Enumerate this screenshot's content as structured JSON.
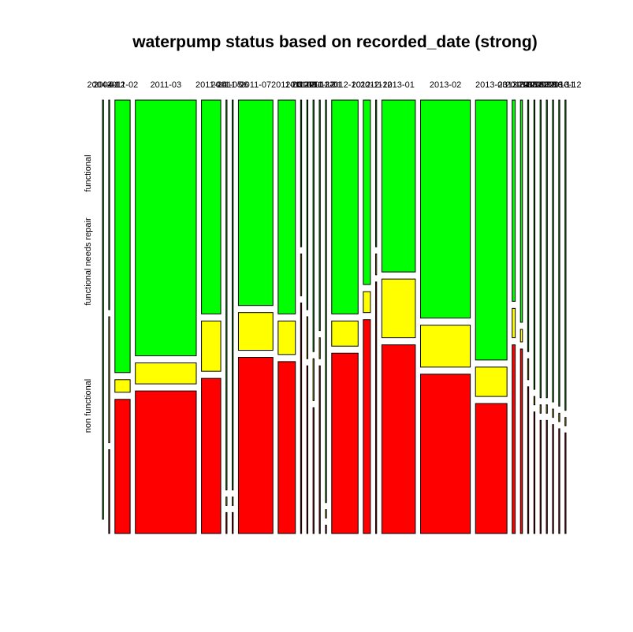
{
  "chart_data": {
    "type": "mosaic",
    "title": "waterpump status based on recorded_date (strong)",
    "levels": [
      "non functional",
      "functional needs repair",
      "functional"
    ],
    "colors": {
      "non functional": "#ff0000",
      "functional needs repair": "#ffff00",
      "functional": "#00ff00"
    },
    "columns": [
      {
        "label": "2004-01",
        "width": 1,
        "fractions": [
          0,
          0,
          1
        ]
      },
      {
        "label": "2004-12",
        "width": 1,
        "fractions": [
          0.2,
          0.3,
          0.5
        ]
      },
      {
        "label": "2011-02",
        "width": 15,
        "fractions": [
          0.32,
          0.03,
          0.65
        ]
      },
      {
        "label": "2011-03",
        "width": 60,
        "fractions": [
          0.34,
          0.05,
          0.61
        ]
      },
      {
        "label": "2011-04",
        "width": 19,
        "fractions": [
          0.37,
          0.12,
          0.51
        ]
      },
      {
        "label": "2011-05",
        "width": 1,
        "fractions": [
          0.05,
          0.02,
          0.93
        ]
      },
      {
        "label": "2011-06",
        "width": 1,
        "fractions": [
          0.05,
          0.02,
          0.93
        ]
      },
      {
        "label": "2011-07",
        "width": 34,
        "fractions": [
          0.42,
          0.09,
          0.49
        ]
      },
      {
        "label": "2011-08",
        "width": 17,
        "fractions": [
          0.41,
          0.08,
          0.51
        ]
      },
      {
        "label": "2011-09",
        "width": 1,
        "fractions": [
          0.55,
          0.1,
          0.35
        ]
      },
      {
        "label": "2011-10",
        "width": 1,
        "fractions": [
          0.4,
          0.1,
          0.5
        ]
      },
      {
        "label": "2011-11",
        "width": 1,
        "fractions": [
          0.3,
          0.1,
          0.6
        ]
      },
      {
        "label": "2011-12",
        "width": 1,
        "fractions": [
          0.4,
          0.05,
          0.55
        ]
      },
      {
        "label": "2012-01",
        "width": 1,
        "fractions": [
          0.02,
          0.02,
          0.96
        ]
      },
      {
        "label": "2012-10",
        "width": 26,
        "fractions": [
          0.43,
          0.06,
          0.51
        ]
      },
      {
        "label": "2012-11",
        "width": 7,
        "fractions": [
          0.51,
          0.05,
          0.44
        ]
      },
      {
        "label": "2012-12",
        "width": 1,
        "fractions": [
          0.6,
          0.05,
          0.35
        ]
      },
      {
        "label": "2013-01",
        "width": 33,
        "fractions": [
          0.45,
          0.14,
          0.41
        ]
      },
      {
        "label": "2013-02",
        "width": 49,
        "fractions": [
          0.38,
          0.1,
          0.52
        ]
      },
      {
        "label": "2013-03",
        "width": 31,
        "fractions": [
          0.31,
          0.07,
          0.62
        ]
      },
      {
        "label": "2013-04",
        "width": 3,
        "fractions": [
          0.45,
          0.07,
          0.48
        ]
      },
      {
        "label": "2013-05",
        "width": 2,
        "fractions": [
          0.44,
          0.03,
          0.53
        ]
      },
      {
        "label": "2013-06",
        "width": 1,
        "fractions": [
          0.35,
          0.05,
          0.6
        ]
      },
      {
        "label": "2013-07",
        "width": 1,
        "fractions": [
          0.29,
          0.02,
          0.69
        ]
      },
      {
        "label": "2013-08",
        "width": 1,
        "fractions": [
          0.27,
          0.02,
          0.71
        ]
      },
      {
        "label": "2013-09",
        "width": 1,
        "fractions": [
          0.27,
          0.02,
          0.71
        ]
      },
      {
        "label": "2013-10",
        "width": 1,
        "fractions": [
          0.26,
          0.02,
          0.72
        ]
      },
      {
        "label": "2013-11",
        "width": 1,
        "fractions": [
          0.25,
          0.02,
          0.73
        ]
      },
      {
        "label": "2013-12",
        "width": 1,
        "fractions": [
          0.24,
          0.02,
          0.74
        ]
      }
    ]
  }
}
